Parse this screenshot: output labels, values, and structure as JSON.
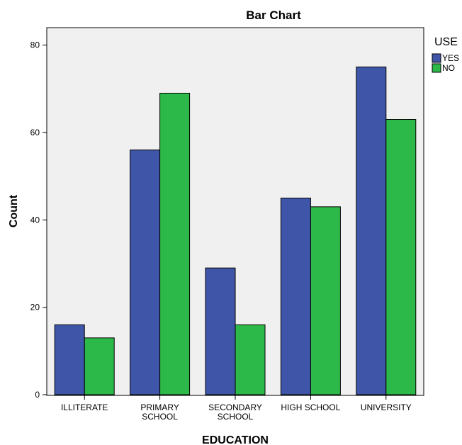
{
  "chart_data": {
    "type": "bar",
    "title": "Bar Chart",
    "xlabel": "EDUCATION",
    "ylabel": "Count",
    "categories": [
      [
        "ILLITERATE"
      ],
      [
        "PRIMARY",
        "SCHOOL"
      ],
      [
        "SECONDARY",
        "SCHOOL"
      ],
      [
        "HIGH SCHOOL"
      ],
      [
        "UNIVERSITY"
      ]
    ],
    "series": [
      {
        "name": "YES",
        "color": "#3f56a8",
        "values": [
          16,
          56,
          29,
          45,
          75
        ]
      },
      {
        "name": "NO",
        "color": "#2db84a",
        "values": [
          13,
          69,
          16,
          43,
          63
        ]
      }
    ],
    "ylim": [
      0,
      84
    ],
    "yticks": [
      0,
      20,
      40,
      60,
      80
    ],
    "legend": {
      "title": "USE",
      "placement": "top-right"
    },
    "grid": false,
    "plot_background": "#f0f0f0"
  }
}
